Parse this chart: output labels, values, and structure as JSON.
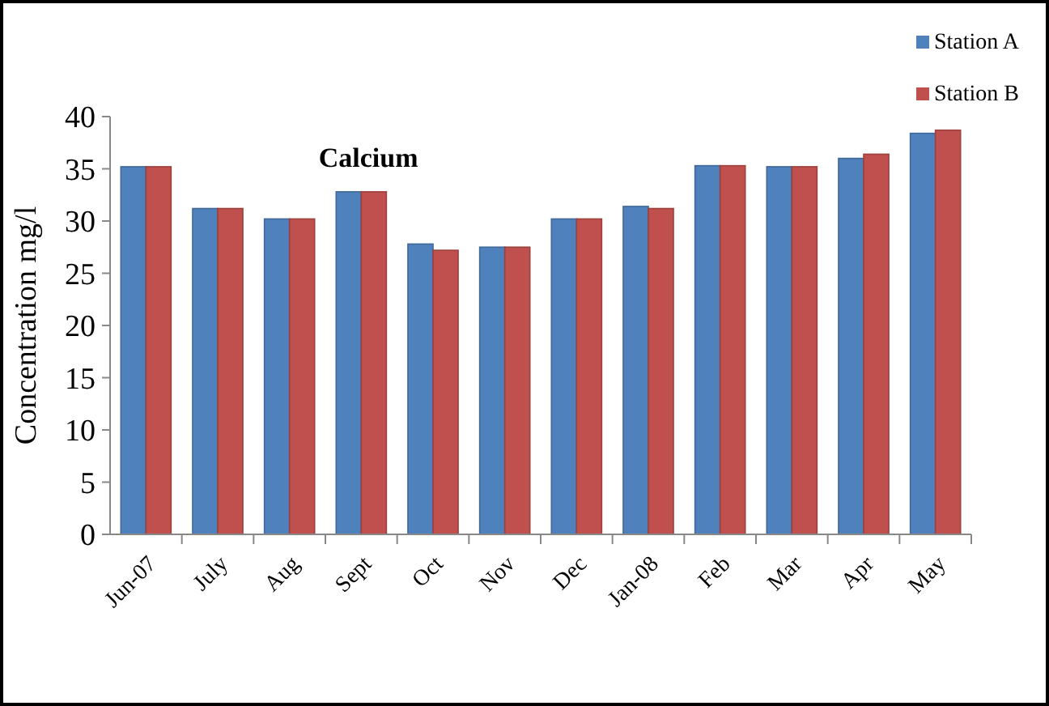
{
  "chart_data": {
    "type": "bar",
    "title": "Calcium",
    "ylabel": "Concentration mg/l",
    "categories": [
      "Jun-07",
      "July",
      "Aug",
      "Sept",
      "Oct",
      "Nov",
      "Dec",
      "Jan-08",
      "Feb",
      "Mar",
      "Apr",
      "May"
    ],
    "series": [
      {
        "name": "Station A",
        "color": "#4f81bd",
        "values": [
          35.2,
          31.2,
          30.2,
          32.8,
          27.8,
          27.5,
          30.2,
          31.4,
          35.3,
          35.2,
          36.0,
          38.4
        ]
      },
      {
        "name": "Station B",
        "color": "#c0504d",
        "values": [
          35.2,
          31.2,
          30.2,
          32.8,
          27.2,
          27.5,
          30.2,
          31.2,
          35.3,
          35.2,
          36.4,
          38.7
        ]
      }
    ],
    "ylim": [
      0,
      40
    ],
    "yticks": [
      0,
      5,
      10,
      15,
      20,
      25,
      30,
      35,
      40
    ],
    "grid": false,
    "legend": "top right"
  }
}
